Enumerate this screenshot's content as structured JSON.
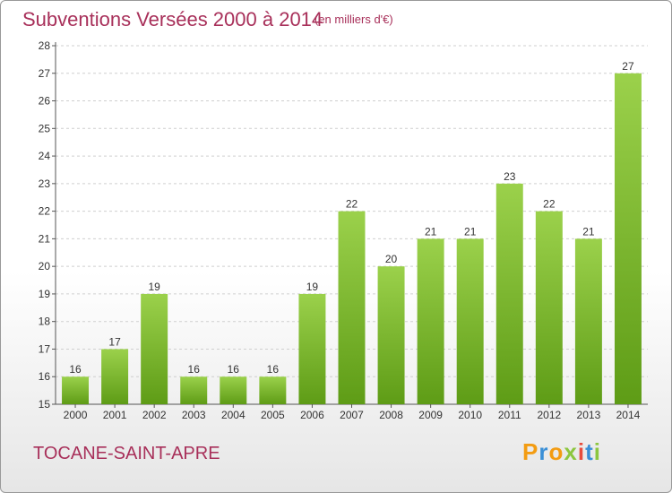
{
  "title": "Subventions Versées 2000 à 2014",
  "subtitle": "(en milliers d'€)",
  "location": "TOCANE-SAINT-APRE",
  "logo": {
    "letters": [
      "P",
      "r",
      "o",
      "x",
      "i",
      "t",
      "i"
    ],
    "colors": [
      "#f39c12",
      "#3a8fd6",
      "#f39c12",
      "#8cc63f",
      "#e74c3c",
      "#3a8fd6",
      "#8cc63f"
    ]
  },
  "colors": {
    "title": "#a8305a",
    "bar_top": "#9bd14b",
    "bar_bottom": "#5e9c16",
    "grid": "#cfcfcf"
  },
  "chart_data": {
    "type": "bar",
    "title": "Subventions Versées 2000 à 2014",
    "subtitle": "(en milliers d'€)",
    "categories": [
      "2000",
      "2001",
      "2002",
      "2003",
      "2004",
      "2005",
      "2006",
      "2007",
      "2008",
      "2009",
      "2010",
      "2011",
      "2012",
      "2013",
      "2014"
    ],
    "values": [
      16,
      17,
      19,
      16,
      16,
      16,
      19,
      22,
      20,
      21,
      21,
      23,
      22,
      21,
      27
    ],
    "ylim": [
      15,
      28
    ],
    "yticks": [
      15,
      16,
      17,
      18,
      19,
      20,
      21,
      22,
      23,
      24,
      25,
      26,
      27,
      28
    ],
    "grid": "horizontal dashed",
    "legend": "none"
  }
}
